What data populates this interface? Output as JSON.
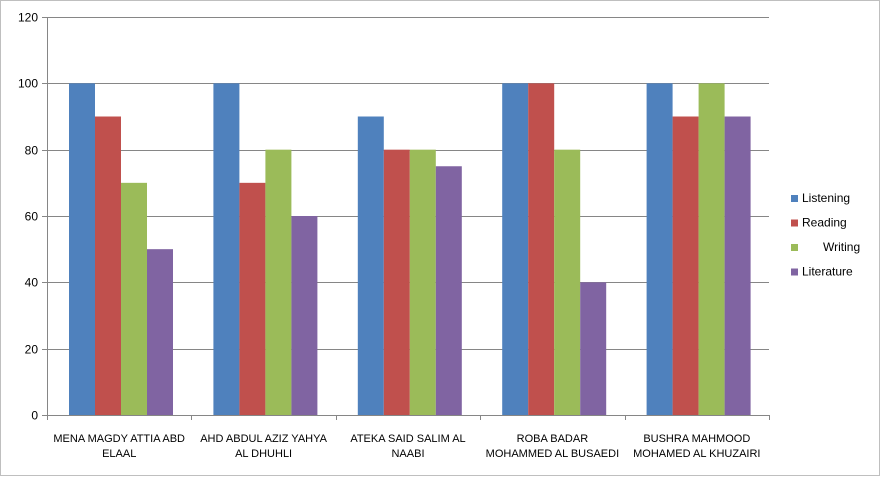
{
  "chart_data": {
    "type": "bar",
    "categories": [
      [
        "MENA MAGDY ATTIA  ABD",
        "ELAAL"
      ],
      [
        "AHD ABDUL  AZIZ  YAHYA",
        "AL DHUHLI"
      ],
      [
        "ATEKA SAID SALIM AL",
        "NAABI"
      ],
      [
        "ROBA BADAR",
        "MOHAMMED AL BUSAEDI"
      ],
      [
        "BUSHRA MAHMOOD",
        "MOHAMED AL KHUZAIRI"
      ]
    ],
    "series": [
      {
        "name": "Listening",
        "color": "#4f81bd",
        "values": [
          100,
          100,
          90,
          100,
          100
        ]
      },
      {
        "name": "Reading",
        "color": "#c0504d",
        "values": [
          90,
          70,
          80,
          100,
          90
        ]
      },
      {
        "name": "Writing",
        "color": "#9bbb59",
        "values": [
          70,
          80,
          80,
          80,
          100
        ]
      },
      {
        "name": "Literature",
        "color": "#8064a2",
        "values": [
          50,
          60,
          75,
          40,
          90
        ]
      }
    ],
    "y_ticks": [
      "0",
      "20",
      "40",
      "60",
      "80",
      "100",
      "120"
    ],
    "ylim": [
      0,
      120
    ],
    "y_step": 20,
    "grid": true,
    "legend_position": "right",
    "title": "",
    "xlabel": "",
    "ylabel": ""
  }
}
